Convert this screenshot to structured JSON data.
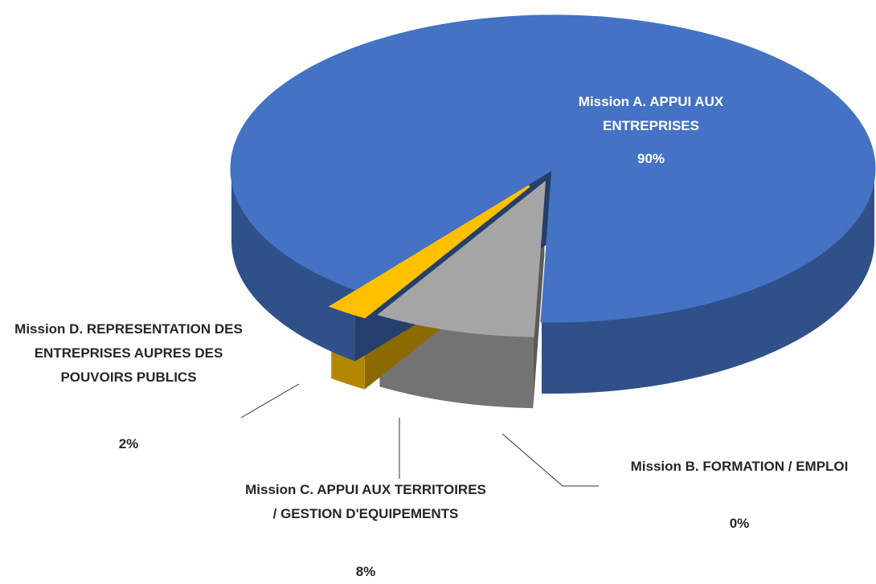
{
  "chart_data": {
    "type": "pie3d",
    "categories": [
      "Mission A. APPUI AUX ENTREPRISES",
      "Mission B. FORMATION / EMPLOI",
      "Mission C. APPUI AUX TERRITOIRES / GESTION D'EQUIPEMENTS",
      "Mission D. REPRESENTATION DES ENTREPRISES AUPRES DES POUVOIRS PUBLICS"
    ],
    "values": [
      90,
      0,
      8,
      2
    ],
    "value_labels": [
      "90%",
      "0%",
      "8%",
      "2%"
    ],
    "colors": [
      "#4472c4",
      "#ed7d31",
      "#a5a5a5",
      "#ffc000"
    ]
  }
}
